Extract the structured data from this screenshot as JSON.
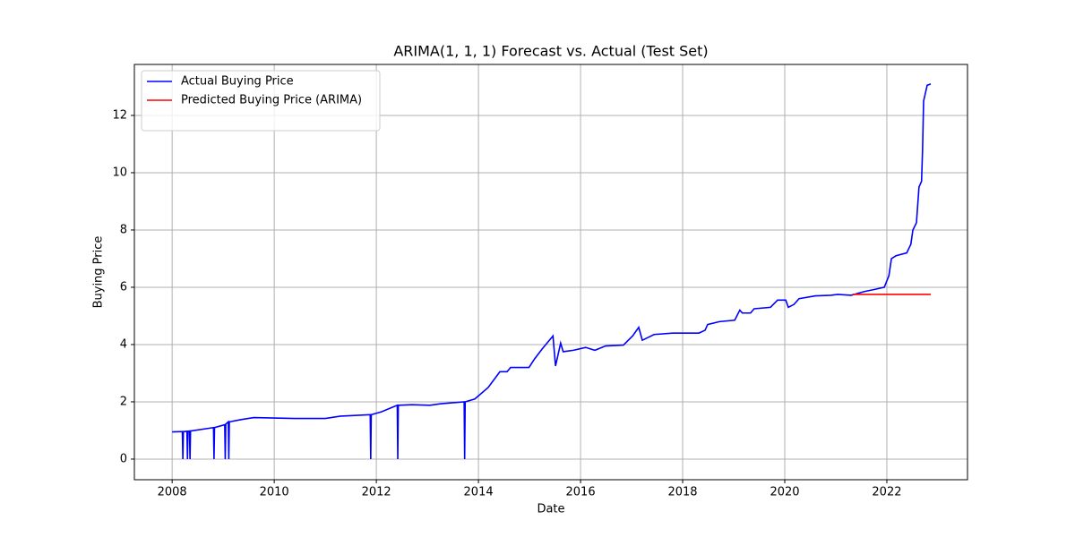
{
  "chart_data": {
    "type": "line",
    "title": "ARIMA(1, 1, 1) Forecast vs. Actual (Test Set)",
    "x_label": "Date",
    "y_label": "Buying Price",
    "series": [
      {
        "name": "Actual Buying Price",
        "color": "#0000ff",
        "x": [
          2008.0,
          2008.2,
          2008.21,
          2008.22,
          2008.29,
          2008.3,
          2008.31,
          2008.34,
          2008.35,
          2008.36,
          2008.81,
          2008.82,
          2008.83,
          2009.03,
          2009.04,
          2009.05,
          2009.1,
          2009.11,
          2009.12,
          2009.35,
          2009.6,
          2010.4,
          2011.0,
          2011.3,
          2011.88,
          2011.89,
          2011.9,
          2012.1,
          2012.3,
          2012.41,
          2012.42,
          2012.43,
          2012.7,
          2013.05,
          2013.25,
          2013.72,
          2013.73,
          2013.74,
          2013.93,
          2014.19,
          2014.42,
          2014.56,
          2014.63,
          2014.99,
          2015.1,
          2015.25,
          2015.46,
          2015.51,
          2015.61,
          2015.66,
          2015.86,
          2016.1,
          2016.28,
          2016.49,
          2016.84,
          2017.02,
          2017.14,
          2017.21,
          2017.44,
          2017.8,
          2018.32,
          2018.44,
          2018.49,
          2018.72,
          2019.02,
          2019.12,
          2019.17,
          2019.33,
          2019.4,
          2019.72,
          2019.86,
          2020.02,
          2020.07,
          2020.18,
          2020.28,
          2020.6,
          2020.9,
          2021.04,
          2021.3,
          2021.56,
          2021.75,
          2021.95,
          2022.04,
          2022.09,
          2022.18,
          2022.39,
          2022.47,
          2022.51,
          2022.58,
          2022.63,
          2022.68,
          2022.7,
          2022.72,
          2022.79,
          2022.86
        ],
        "values": [
          0.95,
          0.96,
          0,
          0.96,
          0.97,
          0,
          0.97,
          0.98,
          0,
          0.98,
          1.1,
          0,
          1.1,
          1.2,
          0,
          1.22,
          1.3,
          0,
          1.3,
          1.38,
          1.45,
          1.42,
          1.42,
          1.5,
          1.55,
          0,
          1.55,
          1.65,
          1.8,
          1.88,
          0,
          1.88,
          1.9,
          1.88,
          1.93,
          2.0,
          0,
          2.0,
          2.1,
          2.5,
          3.05,
          3.05,
          3.2,
          3.2,
          3.5,
          3.85,
          4.3,
          3.25,
          4.05,
          3.75,
          3.8,
          3.9,
          3.8,
          3.95,
          3.98,
          4.3,
          4.6,
          4.15,
          4.35,
          4.4,
          4.4,
          4.5,
          4.7,
          4.8,
          4.85,
          5.2,
          5.1,
          5.1,
          5.25,
          5.3,
          5.55,
          5.55,
          5.3,
          5.4,
          5.6,
          5.7,
          5.72,
          5.75,
          5.72,
          5.85,
          5.92,
          6.0,
          6.4,
          7.0,
          7.1,
          7.2,
          7.5,
          8.0,
          8.25,
          9.5,
          9.7,
          10.8,
          12.5,
          13.05,
          13.1
        ]
      },
      {
        "name": "Predicted Buying Price (ARIMA)",
        "color": "#ff0000",
        "x": [
          2021.33,
          2022.86
        ],
        "values": [
          5.75,
          5.75
        ]
      }
    ],
    "xlim": [
      2007.26,
      2023.58
    ],
    "xticks": [
      2008,
      2010,
      2012,
      2014,
      2016,
      2018,
      2020,
      2022
    ],
    "ylim": [
      -0.72,
      13.78
    ],
    "yticks": [
      0,
      2,
      4,
      6,
      8,
      10,
      12
    ],
    "grid": true,
    "legend": "upper left"
  }
}
